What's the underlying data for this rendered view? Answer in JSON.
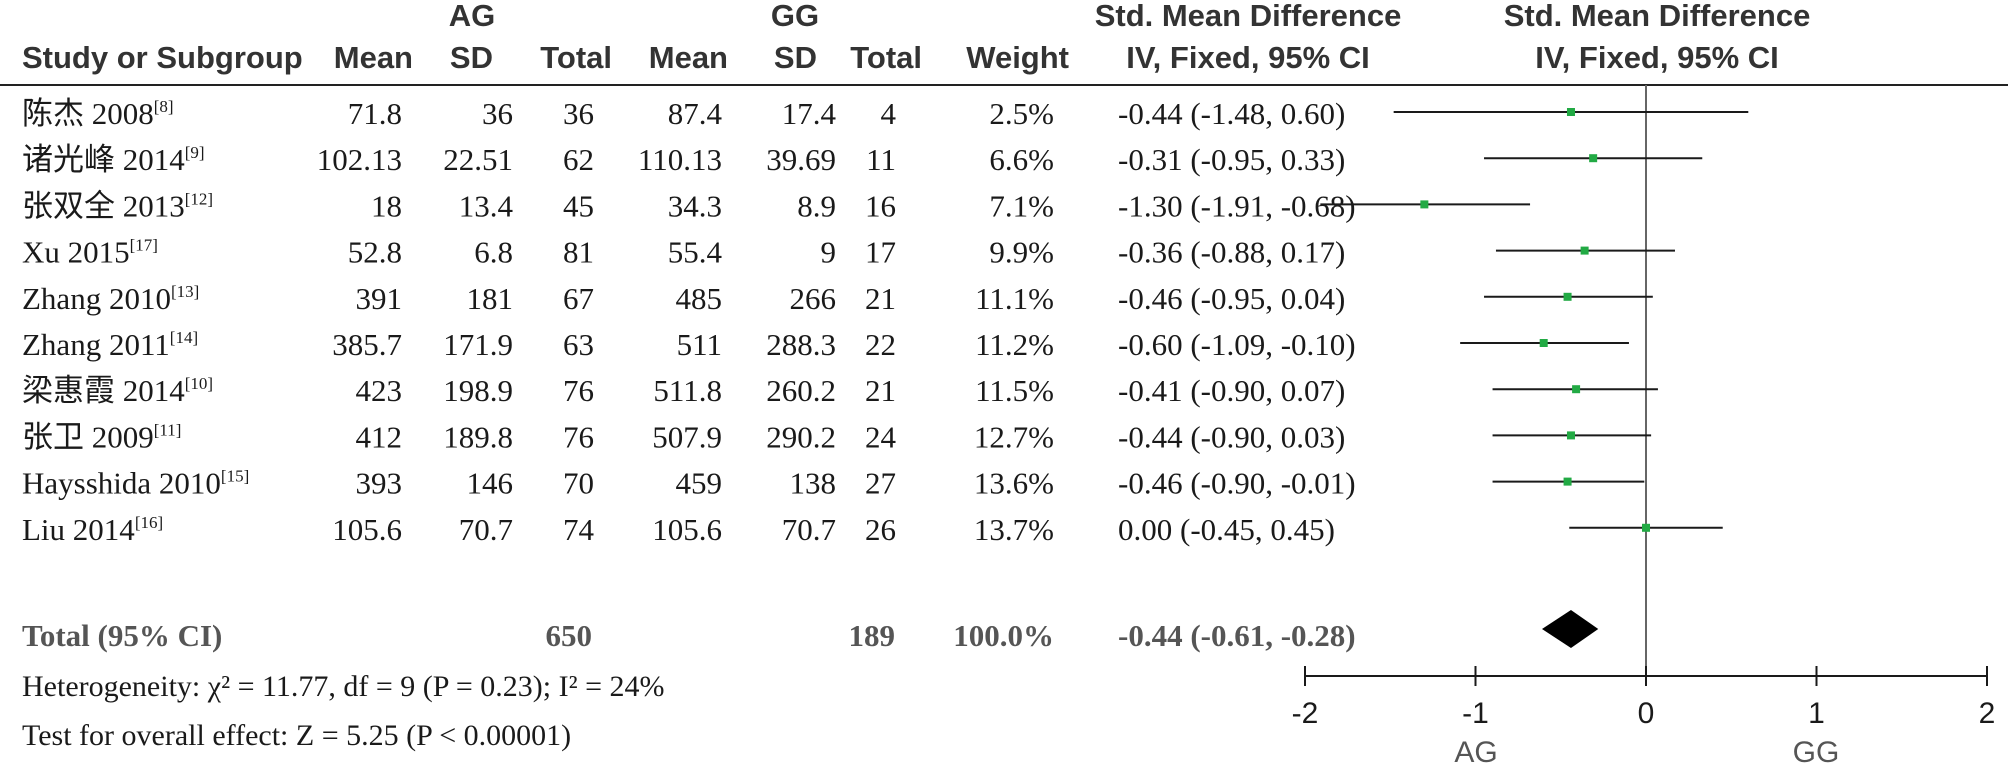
{
  "header": {
    "group1_title": "AG",
    "group2_title": "GG",
    "smd_title": "Std. Mean Difference",
    "smd_method": "IV, Fixed, 95% CI",
    "plot_title": "Std. Mean Difference",
    "plot_method": "IV, Fixed, 95% CI",
    "col_study": "Study or Subgroup",
    "col_mean1": "Mean",
    "col_sd1": "SD",
    "col_total1": "Total",
    "col_mean2": "Mean",
    "col_sd2": "SD",
    "col_total2": "Total",
    "col_weight": "Weight"
  },
  "total_row": {
    "label": "Total (95% CI)",
    "total1": "650",
    "total2": "189",
    "weight": "100.0%",
    "ci": "-0.44 (-0.61, -0.28)"
  },
  "footer": {
    "heterogeneity": "Heterogeneity: χ² = 11.77, df = 9 (P = 0.23); I² = 24%",
    "overall_effect": "Test for overall effect: Z = 5.25 (P < 0.00001)"
  },
  "chart_data": {
    "type": "forest",
    "xlim": [
      -2,
      2
    ],
    "xticks": [
      "-2",
      "-1",
      "0",
      "1",
      "2"
    ],
    "favours_left": "AG",
    "favours_right": "GG",
    "marker_color": "#22aa44",
    "diamond_color": "#000000",
    "studies": [
      {
        "study": "陈杰 2008",
        "ref": "[8]",
        "mean1": "71.8",
        "sd1": "36",
        "total1": "36",
        "mean2": "87.4",
        "sd2": "17.4",
        "total2": "4",
        "weight": "2.5%",
        "ci_text": "-0.44 (-1.48, 0.60)",
        "smd": -0.44,
        "lower": -1.48,
        "upper": 0.6
      },
      {
        "study": "诸光峰 2014",
        "ref": "[9]",
        "mean1": "102.13",
        "sd1": "22.51",
        "total1": "62",
        "mean2": "110.13",
        "sd2": "39.69",
        "total2": "11",
        "weight": "6.6%",
        "ci_text": "-0.31 (-0.95, 0.33)",
        "smd": -0.31,
        "lower": -0.95,
        "upper": 0.33
      },
      {
        "study": "张双全 2013",
        "ref": "[12]",
        "mean1": "18",
        "sd1": "13.4",
        "total1": "45",
        "mean2": "34.3",
        "sd2": "8.9",
        "total2": "16",
        "weight": "7.1%",
        "ci_text": "-1.30 (-1.91, -0.68)",
        "smd": -1.3,
        "lower": -1.91,
        "upper": -0.68
      },
      {
        "study": "Xu 2015",
        "ref": "[17]",
        "mean1": "52.8",
        "sd1": "6.8",
        "total1": "81",
        "mean2": "55.4",
        "sd2": "9",
        "total2": "17",
        "weight": "9.9%",
        "ci_text": "-0.36 (-0.88, 0.17)",
        "smd": -0.36,
        "lower": -0.88,
        "upper": 0.17
      },
      {
        "study": "Zhang 2010",
        "ref": "[13]",
        "mean1": "391",
        "sd1": "181",
        "total1": "67",
        "mean2": "485",
        "sd2": "266",
        "total2": "21",
        "weight": "11.1%",
        "ci_text": "-0.46 (-0.95, 0.04)",
        "smd": -0.46,
        "lower": -0.95,
        "upper": 0.04
      },
      {
        "study": "Zhang 2011",
        "ref": "[14]",
        "mean1": "385.7",
        "sd1": "171.9",
        "total1": "63",
        "mean2": "511",
        "sd2": "288.3",
        "total2": "22",
        "weight": "11.2%",
        "ci_text": "-0.60 (-1.09, -0.10)",
        "smd": -0.6,
        "lower": -1.09,
        "upper": -0.1
      },
      {
        "study": "梁惠霞 2014",
        "ref": "[10]",
        "mean1": "423",
        "sd1": "198.9",
        "total1": "76",
        "mean2": "511.8",
        "sd2": "260.2",
        "total2": "21",
        "weight": "11.5%",
        "ci_text": "-0.41 (-0.90, 0.07)",
        "smd": -0.41,
        "lower": -0.9,
        "upper": 0.07
      },
      {
        "study": "张卫 2009",
        "ref": "[11]",
        "mean1": "412",
        "sd1": "189.8",
        "total1": "76",
        "mean2": "507.9",
        "sd2": "290.2",
        "total2": "24",
        "weight": "12.7%",
        "ci_text": "-0.44 (-0.90, 0.03)",
        "smd": -0.44,
        "lower": -0.9,
        "upper": 0.03
      },
      {
        "study": "Haysshida 2010",
        "ref": "[15]",
        "mean1": "393",
        "sd1": "146",
        "total1": "70",
        "mean2": "459",
        "sd2": "138",
        "total2": "27",
        "weight": "13.6%",
        "ci_text": "-0.46 (-0.90, -0.01)",
        "smd": -0.46,
        "lower": -0.9,
        "upper": -0.01
      },
      {
        "study": "Liu 2014",
        "ref": "[16]",
        "mean1": "105.6",
        "sd1": "70.7",
        "total1": "74",
        "mean2": "105.6",
        "sd2": "70.7",
        "total2": "26",
        "weight": "13.7%",
        "ci_text": "0.00 (-0.45, 0.45)",
        "smd": 0.0,
        "lower": -0.45,
        "upper": 0.45
      }
    ],
    "pooled": {
      "smd": -0.44,
      "lower": -0.61,
      "upper": -0.28
    }
  }
}
